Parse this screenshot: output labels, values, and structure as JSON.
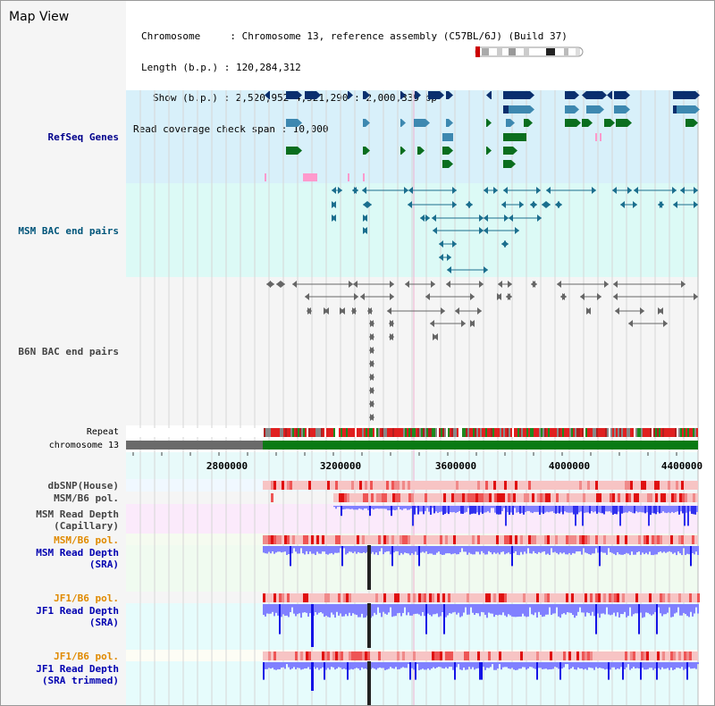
{
  "header": {
    "map_title": "Map View",
    "chromosome_line": "Chromosome     : Chromosome 13, reference assembly (C57BL/6J) (Build 37)",
    "length_line": "Length (b.p.) : 120,284,312",
    "show_line": "Show (b.p.) : 2,520,952-4,521,290 : 2,000,339 bp",
    "coverage_line": "Read coverage check span : 10,000"
  },
  "tracks": {
    "refseq": "RefSeq Genes",
    "msm_bac": "MSM BAC end pairs",
    "b6n_bac": "B6N BAC end pairs",
    "repeat": "Repeat",
    "chromosome": "chromosome 13",
    "dbsnp": "dbSNP(House)",
    "msm_b6_pol_1": "MSM/B6 pol.",
    "msm_depth_cap_1": "MSM Read Depth",
    "msm_depth_cap_2": "(Capillary)",
    "msm_b6_pol_2": "MSM/B6 pol.",
    "msm_depth_sra_1": "MSM Read Depth",
    "msm_depth_sra_2": "(SRA)",
    "jf1_b6_pol_1": "JF1/B6 pol.",
    "jf1_depth_sra_1": "JF1 Read Depth",
    "jf1_depth_sra_2": "(SRA)",
    "jf1_b6_pol_2": "JF1/B6 pol.",
    "jf1_depth_trim_1": "JF1 Read Depth",
    "jf1_depth_trim_2": "(SRA trimmed)"
  },
  "axis": {
    "ticks": [
      "2800000",
      "3200000",
      "3600000",
      "4000000",
      "4400000"
    ]
  },
  "colors": {
    "refseq_bg": "#d8f0fa",
    "msm_bac_bg": "#dcfaf6",
    "b6n_bac_bg": "#f5f5f5",
    "gene_dark": "#0a2f6e",
    "gene_mid": "#3d88b0",
    "gene_green": "#0a6e1e",
    "pink": "#ff9acd",
    "msm_bac_line": "#1b6e8e",
    "b6n_line": "#666666",
    "chrom_green": "#0a7a14",
    "chrom_grey": "#6a6a6a",
    "depth_blue": "#1414e6",
    "depth_light": "#8080ff",
    "pol_red": "#e83030"
  }
}
